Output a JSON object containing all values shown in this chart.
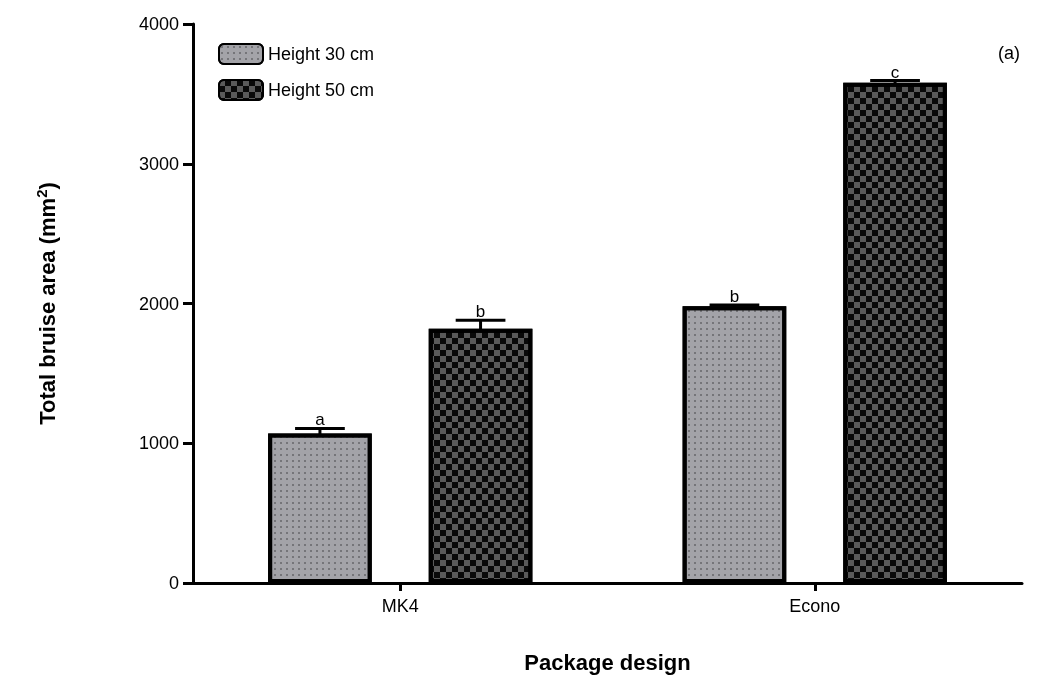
{
  "chart_data": {
    "type": "bar",
    "xlabel": "Package design",
    "ylabel": "Total bruise area (mm$^{2}$)",
    "categories": [
      "MK4",
      "Econo"
    ],
    "series": [
      {
        "name": "Height 30 cm",
        "color": "#a3a3a8",
        "values": [
          1070,
          1980
        ],
        "errors": [
          35,
          10
        ],
        "value_labels": [
          "a",
          "b"
        ]
      },
      {
        "name": "Height 50 cm",
        "color": "#5a5a5a",
        "values": [
          1820,
          3580
        ],
        "errors": [
          60,
          15
        ],
        "value_labels": [
          "b",
          "c"
        ]
      }
    ],
    "ylim": [
      0,
      4000
    ],
    "yticks": [
      0,
      1000,
      2000,
      3000,
      4000
    ],
    "grid": false,
    "legend": "top left",
    "annotations": [
      "(a)"
    ]
  }
}
